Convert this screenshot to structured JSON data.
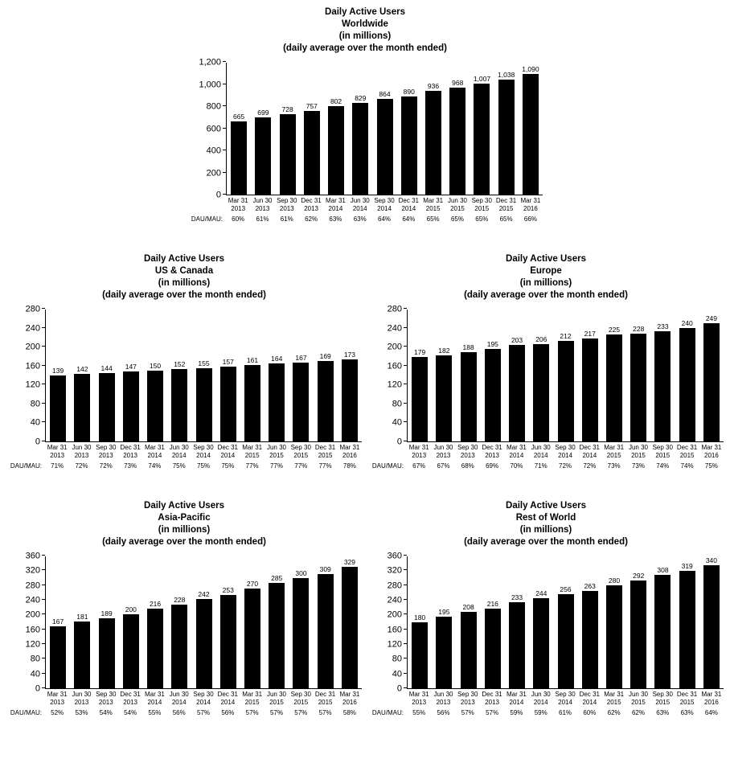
{
  "page": {
    "background": "#ffffff",
    "bar_color": "#000000",
    "text_color": "#000000"
  },
  "chart_data": [
    {
      "type": "bar",
      "title_lines": [
        "Daily Active Users",
        "Worldwide",
        "(in millions)",
        "(daily average over the month ended)"
      ],
      "categories": [
        [
          "Mar 31",
          "2013"
        ],
        [
          "Jun 30",
          "2013"
        ],
        [
          "Sep 30",
          "2013"
        ],
        [
          "Dec 31",
          "2013"
        ],
        [
          "Mar 31",
          "2014"
        ],
        [
          "Jun 30",
          "2014"
        ],
        [
          "Sep 30",
          "2014"
        ],
        [
          "Dec 31",
          "2014"
        ],
        [
          "Mar 31",
          "2015"
        ],
        [
          "Jun 30",
          "2015"
        ],
        [
          "Sep 30",
          "2015"
        ],
        [
          "Dec 31",
          "2015"
        ],
        [
          "Mar 31",
          "2016"
        ]
      ],
      "values": [
        665,
        699,
        728,
        757,
        802,
        829,
        864,
        890,
        936,
        968,
        1007,
        1038,
        1090
      ],
      "value_labels": [
        "665",
        "699",
        "728",
        "757",
        "802",
        "829",
        "864",
        "890",
        "936",
        "968",
        "1,007",
        "1,038",
        "1,090"
      ],
      "dau_mau_label": "DAU/MAU:",
      "dau_mau": [
        "60%",
        "61%",
        "61%",
        "62%",
        "63%",
        "63%",
        "64%",
        "64%",
        "65%",
        "65%",
        "65%",
        "65%",
        "66%"
      ],
      "ylim": [
        0,
        1200
      ],
      "ytick_step": 200,
      "grid": false,
      "legend": "none"
    },
    {
      "type": "bar",
      "title_lines": [
        "Daily Active Users",
        "US & Canada",
        "(in millions)",
        "(daily average over the month ended)"
      ],
      "categories": [
        [
          "Mar 31",
          "2013"
        ],
        [
          "Jun 30",
          "2013"
        ],
        [
          "Sep 30",
          "2013"
        ],
        [
          "Dec 31",
          "2013"
        ],
        [
          "Mar 31",
          "2014"
        ],
        [
          "Jun 30",
          "2014"
        ],
        [
          "Sep 30",
          "2014"
        ],
        [
          "Dec 31",
          "2014"
        ],
        [
          "Mar 31",
          "2015"
        ],
        [
          "Jun 30",
          "2015"
        ],
        [
          "Sep 30",
          "2015"
        ],
        [
          "Dec 31",
          "2015"
        ],
        [
          "Mar 31",
          "2016"
        ]
      ],
      "values": [
        139,
        142,
        144,
        147,
        150,
        152,
        155,
        157,
        161,
        164,
        167,
        169,
        173
      ],
      "value_labels": [
        "139",
        "142",
        "144",
        "147",
        "150",
        "152",
        "155",
        "157",
        "161",
        "164",
        "167",
        "169",
        "173"
      ],
      "dau_mau_label": "DAU/MAU:",
      "dau_mau": [
        "71%",
        "72%",
        "72%",
        "73%",
        "74%",
        "75%",
        "75%",
        "75%",
        "77%",
        "77%",
        "77%",
        "77%",
        "78%"
      ],
      "ylim": [
        0,
        280
      ],
      "ytick_step": 40,
      "grid": false,
      "legend": "none"
    },
    {
      "type": "bar",
      "title_lines": [
        "Daily Active Users",
        "Europe",
        "(in millions)",
        "(daily average over the month ended)"
      ],
      "categories": [
        [
          "Mar 31",
          "2013"
        ],
        [
          "Jun 30",
          "2013"
        ],
        [
          "Sep 30",
          "2013"
        ],
        [
          "Dec 31",
          "2013"
        ],
        [
          "Mar 31",
          "2014"
        ],
        [
          "Jun 30",
          "2014"
        ],
        [
          "Sep 30",
          "2014"
        ],
        [
          "Dec 31",
          "2014"
        ],
        [
          "Mar 31",
          "2015"
        ],
        [
          "Jun 30",
          "2015"
        ],
        [
          "Sep 30",
          "2015"
        ],
        [
          "Dec 31",
          "2015"
        ],
        [
          "Mar 31",
          "2016"
        ]
      ],
      "values": [
        179,
        182,
        188,
        195,
        203,
        206,
        212,
        217,
        225,
        228,
        233,
        240,
        249
      ],
      "value_labels": [
        "179",
        "182",
        "188",
        "195",
        "203",
        "206",
        "212",
        "217",
        "225",
        "228",
        "233",
        "240",
        "249"
      ],
      "dau_mau_label": "DAU/MAU:",
      "dau_mau": [
        "67%",
        "67%",
        "68%",
        "69%",
        "70%",
        "71%",
        "72%",
        "72%",
        "73%",
        "73%",
        "74%",
        "74%",
        "75%"
      ],
      "ylim": [
        0,
        280
      ],
      "ytick_step": 40,
      "grid": false,
      "legend": "none"
    },
    {
      "type": "bar",
      "title_lines": [
        "Daily Active Users",
        "Asia-Pacific",
        "(in millions)",
        "(daily average over the month ended)"
      ],
      "categories": [
        [
          "Mar 31",
          "2013"
        ],
        [
          "Jun 30",
          "2013"
        ],
        [
          "Sep 30",
          "2013"
        ],
        [
          "Dec 31",
          "2013"
        ],
        [
          "Mar 31",
          "2014"
        ],
        [
          "Jun 30",
          "2014"
        ],
        [
          "Sep 30",
          "2014"
        ],
        [
          "Dec 31",
          "2014"
        ],
        [
          "Mar 31",
          "2015"
        ],
        [
          "Jun 30",
          "2015"
        ],
        [
          "Sep 30",
          "2015"
        ],
        [
          "Dec 31",
          "2015"
        ],
        [
          "Mar 31",
          "2016"
        ]
      ],
      "values": [
        167,
        181,
        189,
        200,
        216,
        228,
        242,
        253,
        270,
        285,
        300,
        309,
        329
      ],
      "value_labels": [
        "167",
        "181",
        "189",
        "200",
        "216",
        "228",
        "242",
        "253",
        "270",
        "285",
        "300",
        "309",
        "329"
      ],
      "dau_mau_label": "DAU/MAU:",
      "dau_mau": [
        "52%",
        "53%",
        "54%",
        "54%",
        "55%",
        "56%",
        "57%",
        "56%",
        "57%",
        "57%",
        "57%",
        "57%",
        "58%"
      ],
      "ylim": [
        0,
        360
      ],
      "ytick_step": 40,
      "grid": false,
      "legend": "none"
    },
    {
      "type": "bar",
      "title_lines": [
        "Daily Active Users",
        "Rest of World",
        "(in millions)",
        "(daily average over the month ended)"
      ],
      "categories": [
        [
          "Mar 31",
          "2013"
        ],
        [
          "Jun 30",
          "2013"
        ],
        [
          "Sep 30",
          "2013"
        ],
        [
          "Dec 31",
          "2013"
        ],
        [
          "Mar 31",
          "2014"
        ],
        [
          "Jun 30",
          "2014"
        ],
        [
          "Sep 30",
          "2014"
        ],
        [
          "Dec 31",
          "2014"
        ],
        [
          "Mar 31",
          "2015"
        ],
        [
          "Jun 30",
          "2015"
        ],
        [
          "Sep 30",
          "2015"
        ],
        [
          "Dec 31",
          "2015"
        ],
        [
          "Mar 31",
          "2016"
        ]
      ],
      "values": [
        180,
        195,
        208,
        216,
        233,
        244,
        256,
        263,
        280,
        292,
        308,
        319,
        340
      ],
      "value_labels": [
        "180",
        "195",
        "208",
        "216",
        "233",
        "244",
        "256",
        "263",
        "280",
        "292",
        "308",
        "319",
        "340"
      ],
      "dau_mau_label": "DAU/MAU:",
      "dau_mau": [
        "55%",
        "56%",
        "57%",
        "57%",
        "59%",
        "59%",
        "61%",
        "60%",
        "62%",
        "62%",
        "63%",
        "63%",
        "64%"
      ],
      "ylim": [
        0,
        360
      ],
      "ytick_step": 40,
      "grid": false,
      "legend": "none"
    }
  ]
}
